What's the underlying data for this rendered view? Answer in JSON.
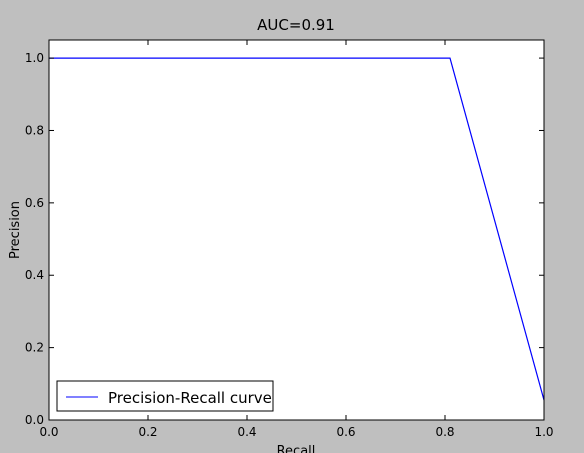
{
  "chart_data": {
    "type": "line",
    "title": "AUC=0.91",
    "xlabel": "Recall",
    "ylabel": "Precision",
    "xlim": [
      0.0,
      1.0
    ],
    "ylim": [
      0.0,
      1.05
    ],
    "x_ticks": [
      0.0,
      0.2,
      0.4,
      0.6,
      0.8,
      1.0
    ],
    "x_tick_labels": [
      "0.0",
      "0.2",
      "0.4",
      "0.6",
      "0.8",
      "1.0"
    ],
    "y_ticks": [
      0.0,
      0.2,
      0.4,
      0.6,
      0.8,
      1.0
    ],
    "y_tick_labels": [
      "0.0",
      "0.2",
      "0.4",
      "0.6",
      "0.8",
      "1.0"
    ],
    "grid": false,
    "legend_position": "lower-left",
    "series": [
      {
        "name": "Precision-Recall curve",
        "color": "#0000ff",
        "x": [
          0.0,
          0.81,
          1.0
        ],
        "y": [
          1.0,
          1.0,
          0.055
        ]
      }
    ]
  },
  "colors": {
    "figure_background": "#bfbfbf",
    "plot_background": "#ffffff",
    "axes": "#000000"
  }
}
